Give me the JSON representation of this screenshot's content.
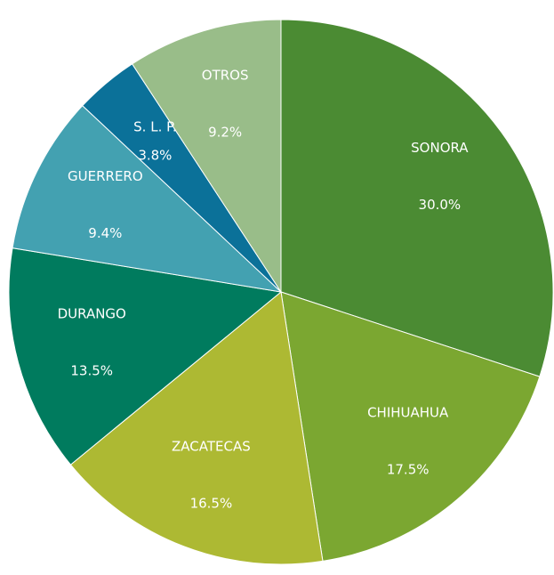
{
  "chart_data": {
    "type": "pie",
    "categories": [
      "SONORA",
      "CHIHUAHUA",
      "ZACATECAS",
      "DURANGO",
      "GUERRERO",
      "S. L. P.",
      "OTROS"
    ],
    "values": [
      30.0,
      17.5,
      16.5,
      13.5,
      9.4,
      3.8,
      9.2
    ],
    "value_labels": [
      "30.0%",
      "17.5%",
      "16.5%",
      "13.5%",
      "9.4%",
      "3.8%",
      "9.2%"
    ],
    "colors": [
      "#4b8b33",
      "#7ba731",
      "#adb933",
      "#007b5e",
      "#43a1b1",
      "#0b7199",
      "#99bd89"
    ]
  }
}
